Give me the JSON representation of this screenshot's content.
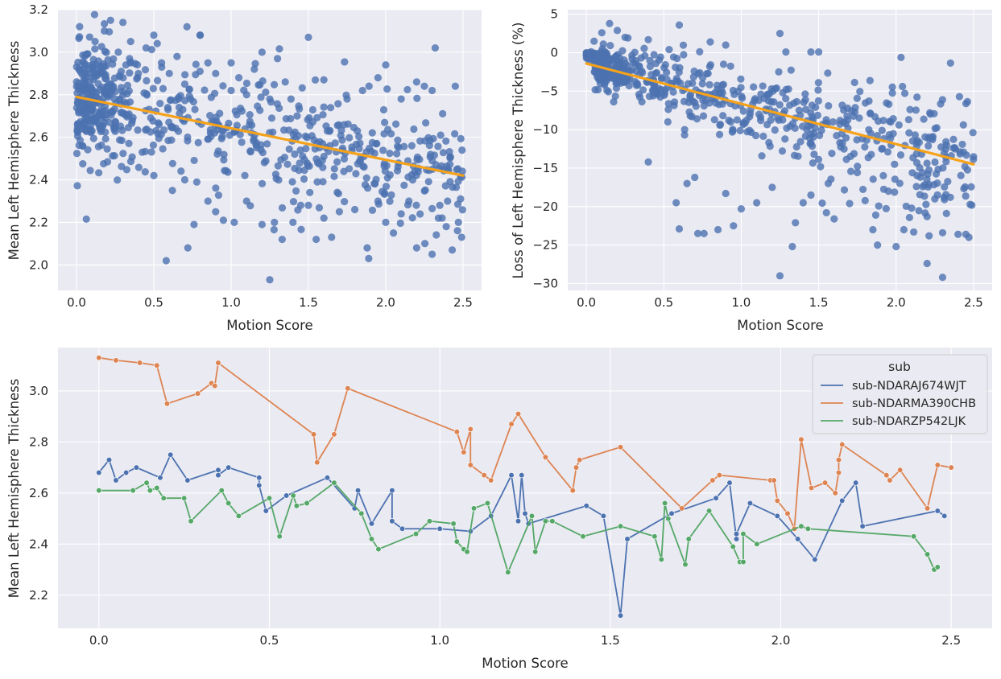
{
  "chart_data": [
    {
      "type": "scatter",
      "title": "",
      "xlabel": "Motion Score",
      "ylabel": "Mean Left Hemisphere Thickness",
      "xlim": [
        -0.12,
        2.62
      ],
      "ylim": [
        1.88,
        3.2
      ],
      "xticks": [
        0.0,
        0.5,
        1.0,
        1.5,
        2.0,
        2.5
      ],
      "yticks": [
        2.0,
        2.2,
        2.4,
        2.6,
        2.8,
        3.0,
        3.2
      ],
      "xtick_labels": [
        "0.0",
        "0.5",
        "1.0",
        "1.5",
        "2.0",
        "2.5"
      ],
      "ytick_labels": [
        "2.0",
        "2.2",
        "2.4",
        "2.6",
        "2.8",
        "3.0",
        "3.2"
      ],
      "point_color": "#4c72b0",
      "regression": {
        "x": [
          0.0,
          2.5
        ],
        "y": [
          2.79,
          2.42
        ],
        "color": "#f5a21b"
      },
      "points": [
        [
          0.02,
          3.12
        ],
        [
          0.05,
          2.95
        ],
        [
          0.08,
          2.9
        ],
        [
          0.12,
          3.05
        ],
        [
          0.18,
          3.1
        ],
        [
          0.22,
          3.15
        ],
        [
          0.27,
          3.0
        ],
        [
          0.3,
          3.14
        ],
        [
          0.35,
          3.05
        ],
        [
          0.4,
          2.9
        ],
        [
          0.45,
          3.02
        ],
        [
          0.5,
          3.08
        ],
        [
          0.55,
          2.95
        ],
        [
          0.6,
          2.9
        ],
        [
          0.65,
          2.98
        ],
        [
          0.7,
          2.85
        ],
        [
          0.8,
          3.08
        ],
        [
          0.85,
          2.95
        ],
        [
          0.9,
          2.9
        ],
        [
          1.0,
          2.95
        ],
        [
          1.05,
          2.88
        ],
        [
          1.15,
          2.92
        ],
        [
          1.2,
          3.0
        ],
        [
          1.3,
          2.97
        ],
        [
          1.5,
          3.07
        ],
        [
          2.32,
          3.02
        ],
        [
          1.0,
          2.82
        ],
        [
          1.1,
          2.8
        ],
        [
          1.25,
          2.78
        ],
        [
          1.35,
          2.86
        ],
        [
          1.6,
          2.87
        ],
        [
          1.75,
          2.78
        ],
        [
          1.85,
          2.82
        ],
        [
          1.95,
          2.88
        ],
        [
          2.0,
          2.94
        ],
        [
          2.1,
          2.78
        ],
        [
          2.2,
          2.86
        ],
        [
          2.25,
          2.84
        ],
        [
          2.45,
          2.84
        ],
        [
          2.3,
          2.82
        ],
        [
          0.58,
          2.02
        ],
        [
          0.72,
          2.08
        ],
        [
          0.76,
          2.19
        ],
        [
          0.95,
          2.21
        ],
        [
          1.02,
          2.2
        ],
        [
          1.2,
          2.19
        ],
        [
          1.28,
          2.2
        ],
        [
          1.33,
          2.12
        ],
        [
          1.25,
          1.93
        ],
        [
          1.55,
          2.12
        ],
        [
          1.65,
          2.13
        ],
        [
          1.88,
          2.08
        ],
        [
          1.89,
          2.03
        ],
        [
          2.0,
          2.2
        ],
        [
          2.05,
          2.15
        ],
        [
          2.2,
          2.08
        ],
        [
          2.3,
          2.05
        ],
        [
          2.43,
          2.07
        ],
        [
          2.47,
          2.2
        ],
        [
          1.45,
          2.28
        ],
        [
          0.85,
          2.3
        ],
        [
          0.9,
          2.25
        ],
        [
          1.1,
          2.3
        ],
        [
          1.5,
          2.28
        ],
        [
          1.7,
          2.25
        ],
        [
          1.8,
          2.26
        ],
        [
          1.95,
          2.3
        ],
        [
          2.1,
          2.24
        ],
        [
          2.4,
          2.3
        ],
        [
          0.62,
          2.35
        ],
        [
          0.7,
          2.4
        ],
        [
          0.5,
          2.42
        ],
        [
          2.35,
          2.28
        ],
        [
          1.4,
          2.2
        ],
        [
          2.15,
          2.3
        ],
        [
          1.6,
          2.22
        ]
      ],
      "point_cloud": {
        "n": 700,
        "x_range": [
          0.0,
          2.5
        ],
        "intercept": 2.79,
        "slope": -0.148,
        "spread": 0.14
      }
    },
    {
      "type": "scatter",
      "title": "",
      "xlabel": "Motion Score",
      "ylabel": "Loss of Left Hemisphere Thickness (%)",
      "xlim": [
        -0.12,
        2.62
      ],
      "ylim": [
        -30.9,
        5.6
      ],
      "xticks": [
        0.0,
        0.5,
        1.0,
        1.5,
        2.0,
        2.5
      ],
      "yticks": [
        5,
        0,
        -5,
        -10,
        -15,
        -20,
        -25,
        -30
      ],
      "xtick_labels": [
        "0.0",
        "0.5",
        "1.0",
        "1.5",
        "2.0",
        "2.5"
      ],
      "ytick_labels": [
        "5",
        "0",
        "−5",
        "−10",
        "−15",
        "−20",
        "−25",
        "−30"
      ],
      "point_color": "#4c72b0",
      "regression": {
        "x": [
          0.0,
          2.5
        ],
        "y": [
          -1.4,
          -14.5
        ],
        "color": "#f5a21b"
      },
      "points": [
        [
          0.0,
          0.0
        ],
        [
          0.02,
          0.0
        ],
        [
          0.05,
          1.5
        ],
        [
          0.1,
          2.6
        ],
        [
          0.15,
          3.8
        ],
        [
          0.2,
          2.9
        ],
        [
          0.25,
          2.0
        ],
        [
          0.4,
          1.7
        ],
        [
          0.6,
          3.6
        ],
        [
          0.8,
          1.4
        ],
        [
          0.9,
          1.0
        ],
        [
          1.25,
          2.5
        ],
        [
          1.45,
          0.1
        ],
        [
          1.5,
          0.1
        ],
        [
          0.58,
          -19.5
        ],
        [
          0.6,
          -22.9
        ],
        [
          0.72,
          -23.5
        ],
        [
          0.76,
          -23.5
        ],
        [
          0.85,
          -23.0
        ],
        [
          0.95,
          -22.5
        ],
        [
          1.0,
          -20.3
        ],
        [
          1.25,
          -29.0
        ],
        [
          1.33,
          -25.2
        ],
        [
          1.35,
          -22.1
        ],
        [
          1.55,
          -20.8
        ],
        [
          1.6,
          -21.6
        ],
        [
          1.88,
          -25.0
        ],
        [
          2.0,
          -25.2
        ],
        [
          2.05,
          -23.0
        ],
        [
          2.2,
          -27.4
        ],
        [
          2.3,
          -29.2
        ],
        [
          2.4,
          -23.6
        ],
        [
          2.45,
          -23.6
        ],
        [
          2.47,
          -24.0
        ],
        [
          2.3,
          -23.4
        ],
        [
          1.85,
          -23.0
        ],
        [
          0.4,
          -14.2
        ],
        [
          0.7,
          -16.2
        ],
        [
          0.9,
          -18.3
        ],
        [
          1.1,
          -19.5
        ],
        [
          1.45,
          -18.5
        ],
        [
          1.7,
          -19.6
        ],
        [
          2.1,
          -20.2
        ],
        [
          2.2,
          -21.3
        ],
        [
          2.25,
          -19.0
        ],
        [
          0.65,
          -17.0
        ],
        [
          1.2,
          -17.5
        ],
        [
          1.4,
          -19.5
        ],
        [
          2.35,
          -18.8
        ],
        [
          1.95,
          -18.0
        ]
      ],
      "point_cloud": {
        "n": 700,
        "x_range": [
          0.0,
          2.5
        ],
        "intercept": -1.4,
        "slope": -5.24,
        "spread": 4.2
      }
    },
    {
      "type": "line",
      "title": "",
      "xlabel": "Motion Score",
      "ylabel": "Mean Left Hemisphere Thickness",
      "xlim": [
        -0.12,
        2.62
      ],
      "ylim": [
        2.07,
        3.17
      ],
      "xticks": [
        0.0,
        0.5,
        1.0,
        1.5,
        2.0,
        2.5
      ],
      "yticks": [
        2.2,
        2.4,
        2.6,
        2.8,
        3.0
      ],
      "xtick_labels": [
        "0.0",
        "0.5",
        "1.0",
        "1.5",
        "2.0",
        "2.5"
      ],
      "ytick_labels": [
        "2.2",
        "2.4",
        "2.6",
        "2.8",
        "3.0"
      ],
      "legend": {
        "title": "sub",
        "location": "top-right"
      },
      "series": [
        {
          "name": "sub-NDARAJ674WJT",
          "color": "#4c72b0",
          "points": [
            [
              0.0,
              2.68
            ],
            [
              0.03,
              2.73
            ],
            [
              0.05,
              2.65
            ],
            [
              0.08,
              2.68
            ],
            [
              0.11,
              2.7
            ],
            [
              0.18,
              2.66
            ],
            [
              0.21,
              2.75
            ],
            [
              0.26,
              2.65
            ],
            [
              0.35,
              2.69
            ],
            [
              0.35,
              2.67
            ],
            [
              0.38,
              2.7
            ],
            [
              0.47,
              2.66
            ],
            [
              0.47,
              2.63
            ],
            [
              0.49,
              2.53
            ],
            [
              0.55,
              2.59
            ],
            [
              0.67,
              2.66
            ],
            [
              0.75,
              2.54
            ],
            [
              0.76,
              2.61
            ],
            [
              0.8,
              2.48
            ],
            [
              0.86,
              2.61
            ],
            [
              0.86,
              2.49
            ],
            [
              0.89,
              2.46
            ],
            [
              1.0,
              2.46
            ],
            [
              1.09,
              2.45
            ],
            [
              1.15,
              2.51
            ],
            [
              1.21,
              2.67
            ],
            [
              1.23,
              2.49
            ],
            [
              1.24,
              2.67
            ],
            [
              1.25,
              2.52
            ],
            [
              1.26,
              2.48
            ],
            [
              1.43,
              2.55
            ],
            [
              1.48,
              2.51
            ],
            [
              1.53,
              2.12
            ],
            [
              1.55,
              2.42
            ],
            [
              1.68,
              2.52
            ],
            [
              1.81,
              2.58
            ],
            [
              1.85,
              2.64
            ],
            [
              1.87,
              2.42
            ],
            [
              1.87,
              2.44
            ],
            [
              1.91,
              2.56
            ],
            [
              1.99,
              2.51
            ],
            [
              2.05,
              2.42
            ],
            [
              2.1,
              2.34
            ],
            [
              2.18,
              2.57
            ],
            [
              2.22,
              2.64
            ],
            [
              2.24,
              2.47
            ],
            [
              2.46,
              2.53
            ],
            [
              2.48,
              2.51
            ]
          ]
        },
        {
          "name": "sub-NDARMA390CHB",
          "color": "#dd8452",
          "points": [
            [
              0.0,
              3.13
            ],
            [
              0.05,
              3.12
            ],
            [
              0.12,
              3.11
            ],
            [
              0.17,
              3.1
            ],
            [
              0.2,
              2.95
            ],
            [
              0.29,
              2.99
            ],
            [
              0.33,
              3.03
            ],
            [
              0.34,
              3.02
            ],
            [
              0.35,
              3.11
            ],
            [
              0.63,
              2.83
            ],
            [
              0.64,
              2.72
            ],
            [
              0.69,
              2.83
            ],
            [
              0.73,
              3.01
            ],
            [
              1.05,
              2.84
            ],
            [
              1.07,
              2.76
            ],
            [
              1.09,
              2.85
            ],
            [
              1.09,
              2.71
            ],
            [
              1.13,
              2.67
            ],
            [
              1.15,
              2.65
            ],
            [
              1.21,
              2.87
            ],
            [
              1.23,
              2.91
            ],
            [
              1.31,
              2.74
            ],
            [
              1.39,
              2.61
            ],
            [
              1.4,
              2.7
            ],
            [
              1.41,
              2.73
            ],
            [
              1.53,
              2.78
            ],
            [
              1.71,
              2.54
            ],
            [
              1.8,
              2.65
            ],
            [
              1.82,
              2.67
            ],
            [
              1.97,
              2.65
            ],
            [
              1.98,
              2.65
            ],
            [
              1.99,
              2.57
            ],
            [
              2.02,
              2.52
            ],
            [
              2.04,
              2.46
            ],
            [
              2.06,
              2.81
            ],
            [
              2.09,
              2.62
            ],
            [
              2.13,
              2.64
            ],
            [
              2.16,
              2.6
            ],
            [
              2.17,
              2.68
            ],
            [
              2.17,
              2.73
            ],
            [
              2.18,
              2.79
            ],
            [
              2.31,
              2.67
            ],
            [
              2.32,
              2.65
            ],
            [
              2.35,
              2.69
            ],
            [
              2.43,
              2.54
            ],
            [
              2.46,
              2.71
            ],
            [
              2.5,
              2.7
            ]
          ]
        },
        {
          "name": "sub-NDARZP542LJK",
          "color": "#55a868",
          "points": [
            [
              0.0,
              2.61
            ],
            [
              0.1,
              2.61
            ],
            [
              0.14,
              2.64
            ],
            [
              0.15,
              2.61
            ],
            [
              0.17,
              2.62
            ],
            [
              0.19,
              2.58
            ],
            [
              0.25,
              2.58
            ],
            [
              0.27,
              2.49
            ],
            [
              0.36,
              2.61
            ],
            [
              0.38,
              2.56
            ],
            [
              0.41,
              2.51
            ],
            [
              0.5,
              2.58
            ],
            [
              0.53,
              2.43
            ],
            [
              0.57,
              2.59
            ],
            [
              0.58,
              2.55
            ],
            [
              0.61,
              2.56
            ],
            [
              0.69,
              2.64
            ],
            [
              0.77,
              2.52
            ],
            [
              0.8,
              2.42
            ],
            [
              0.82,
              2.38
            ],
            [
              0.93,
              2.44
            ],
            [
              0.97,
              2.49
            ],
            [
              1.04,
              2.48
            ],
            [
              1.05,
              2.41
            ],
            [
              1.07,
              2.38
            ],
            [
              1.08,
              2.37
            ],
            [
              1.1,
              2.54
            ],
            [
              1.14,
              2.56
            ],
            [
              1.2,
              2.29
            ],
            [
              1.27,
              2.51
            ],
            [
              1.28,
              2.37
            ],
            [
              1.31,
              2.49
            ],
            [
              1.33,
              2.49
            ],
            [
              1.42,
              2.43
            ],
            [
              1.53,
              2.47
            ],
            [
              1.63,
              2.43
            ],
            [
              1.65,
              2.34
            ],
            [
              1.66,
              2.56
            ],
            [
              1.67,
              2.5
            ],
            [
              1.72,
              2.32
            ],
            [
              1.73,
              2.42
            ],
            [
              1.79,
              2.53
            ],
            [
              1.86,
              2.39
            ],
            [
              1.88,
              2.33
            ],
            [
              1.89,
              2.33
            ],
            [
              1.89,
              2.44
            ],
            [
              1.93,
              2.4
            ],
            [
              2.06,
              2.47
            ],
            [
              2.08,
              2.46
            ],
            [
              2.39,
              2.43
            ],
            [
              2.43,
              2.36
            ],
            [
              2.45,
              2.3
            ],
            [
              2.46,
              2.31
            ]
          ]
        }
      ]
    }
  ]
}
